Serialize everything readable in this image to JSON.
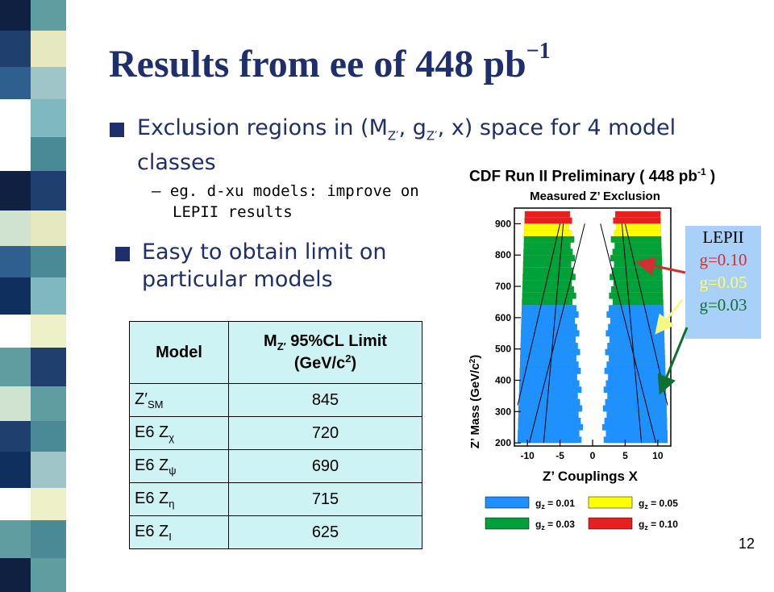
{
  "slide": {
    "title": "Results from ee of 448 pb",
    "title_exponent": "−1",
    "bullets": {
      "b1_line1": "Exclusion regions in (M",
      "b1_sub1": "Z′",
      "b1_mid": ", g",
      "b1_sub2": "Z′",
      "b1_end": ", x) space for 4 model",
      "b1_line2": "classes",
      "sub_line1": "– eg. d-xu models: improve on",
      "sub_line2": "LEPII results",
      "b2_line1": "Easy to obtain limit on",
      "b2_line2": "particular models"
    },
    "page_number": "12",
    "colors": {
      "title": "#1f2f6b",
      "table_bg": "#cdf3f5",
      "legend_bg": "#a8d0f8"
    }
  },
  "table": {
    "header_model": "Model",
    "header_limit_a": "M",
    "header_limit_sub": "Z′",
    "header_limit_b": " 95%CL Limit",
    "header_limit_c": "(GeV/c",
    "header_limit_sup": "2",
    "header_limit_d": ")",
    "rows": [
      {
        "model": "Z′",
        "sub": "SM",
        "limit": "845"
      },
      {
        "model": "E6 Z",
        "sub": "χ",
        "limit": "720"
      },
      {
        "model": "E6 Z",
        "sub": "ψ",
        "limit": "690"
      },
      {
        "model": "E6 Z",
        "sub": "η",
        "limit": "715"
      },
      {
        "model": "E6 Z",
        "sub": "I",
        "limit": "625"
      }
    ]
  },
  "plot": {
    "title_a": "CDF Run II Preliminary ( 448 pb",
    "title_sup": "-1",
    "title_b": " )",
    "subtitle": "Measured Z’ Exclusion",
    "ylabel": "Z’ Mass (GeV/c",
    "ylabel_sup": "2",
    "ylabel_end": ")",
    "xlabel": "Z’ Couplings X",
    "yticks": [
      "200",
      "300",
      "400",
      "500",
      "600",
      "700",
      "800",
      "900"
    ],
    "xticks": [
      "-10",
      "-5",
      "0",
      "5",
      "10"
    ],
    "legend": [
      {
        "label": "g",
        "sub": "z",
        "value": " = 0.01",
        "color": "#1e90ff"
      },
      {
        "label": "g",
        "sub": "z",
        "value": " = 0.05",
        "color": "#ffff00"
      },
      {
        "label": "g",
        "sub": "z",
        "value": " = 0.03",
        "color": "#00a03a"
      },
      {
        "label": "g",
        "sub": "z",
        "value": " = 0.10",
        "color": "#e62020"
      }
    ],
    "lep_box": {
      "title": "LEPII",
      "g1": "g=0.10",
      "g2": "g=0.05",
      "g3": "g=0.03",
      "c1": "#d03030",
      "c2": "#ffff60",
      "c3": "#107030"
    }
  }
}
